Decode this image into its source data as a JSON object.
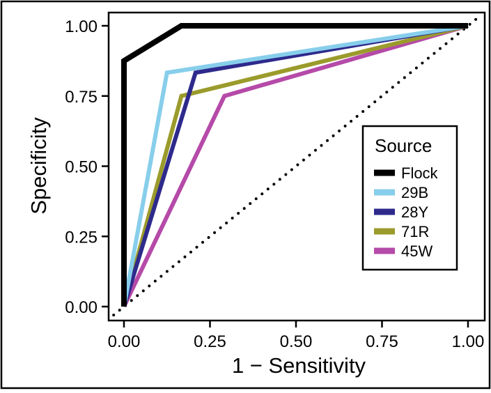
{
  "chart_data": {
    "type": "line",
    "title": "",
    "xlabel": "1 − Sensitivity",
    "ylabel": "Specificity",
    "xlim": [
      0,
      1
    ],
    "ylim": [
      0,
      1
    ],
    "xticks": [
      0,
      0.25,
      0.5,
      0.75,
      1
    ],
    "yticks": [
      0,
      0.25,
      0.5,
      0.75,
      1
    ],
    "xtick_labels": [
      "0.00",
      "0.25",
      "0.50",
      "0.75",
      "1.00"
    ],
    "ytick_labels": [
      "0.00",
      "0.25",
      "0.50",
      "0.75",
      "1.00"
    ],
    "grid": false,
    "legend": {
      "title": "Source",
      "placement": "right"
    },
    "reference_line": {
      "style": "dotted",
      "color": "#000000",
      "x": [
        0,
        1
      ],
      "y": [
        0,
        1
      ]
    },
    "series": [
      {
        "name": "Flock",
        "color": "#000000",
        "x": [
          0,
          0,
          0.167,
          1
        ],
        "y": [
          0,
          0.875,
          1,
          1
        ]
      },
      {
        "name": "29B",
        "color": "#87ceeb",
        "x": [
          0,
          0.125,
          1
        ],
        "y": [
          0,
          0.833,
          1
        ]
      },
      {
        "name": "28Y",
        "color": "#2e2a8c",
        "x": [
          0,
          0.208,
          1
        ],
        "y": [
          0,
          0.833,
          1
        ]
      },
      {
        "name": "71R",
        "color": "#9b9b2c",
        "x": [
          0,
          0.167,
          1
        ],
        "y": [
          0,
          0.75,
          1
        ]
      },
      {
        "name": "45W",
        "color": "#b54aa8",
        "x": [
          0,
          0.292,
          1
        ],
        "y": [
          0,
          0.75,
          1
        ]
      }
    ]
  }
}
